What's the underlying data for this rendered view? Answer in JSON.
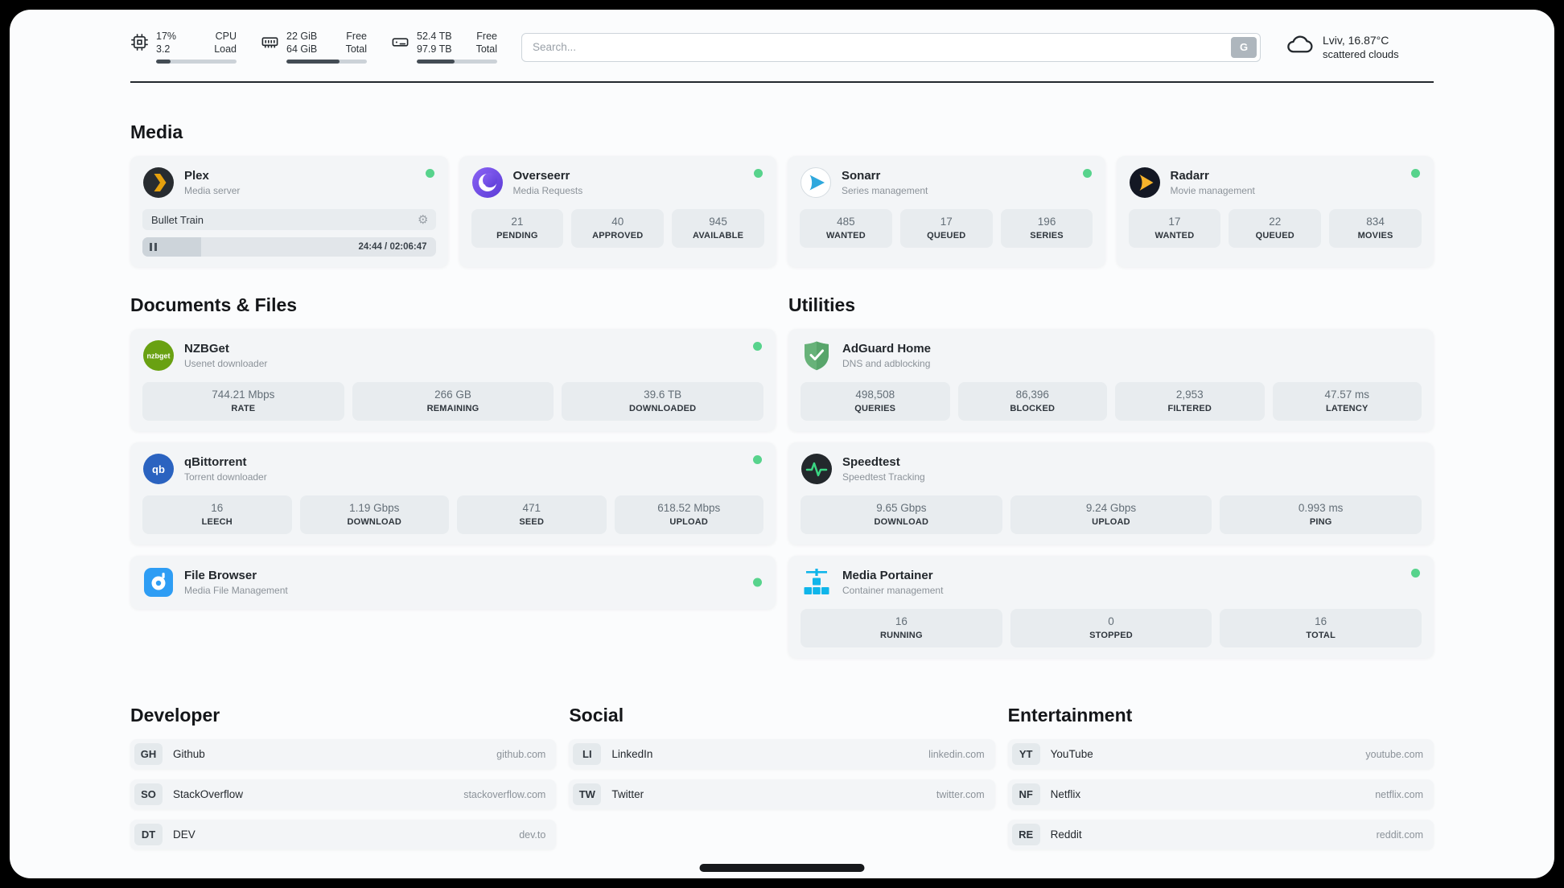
{
  "colors": {
    "status_online": "#57d38c"
  },
  "header": {
    "cpu": {
      "value_top": "17%",
      "label_top": "CPU",
      "value_bottom": "3.2",
      "label_bottom": "Load",
      "bar_percent": 18
    },
    "ram": {
      "value_top": "22 GiB",
      "label_top": "Free",
      "value_bottom": "64 GiB",
      "label_bottom": "Total",
      "bar_percent": 66
    },
    "disk": {
      "value_top": "52.4 TB",
      "label_top": "Free",
      "value_bottom": "97.9 TB",
      "label_bottom": "Total",
      "bar_percent": 47
    },
    "search": {
      "placeholder": "Search...",
      "engine_label": "G"
    },
    "weather": {
      "location": "Lviv, 16.87°C",
      "condition": "scattered clouds"
    }
  },
  "sections": {
    "media": {
      "title": "Media",
      "plex": {
        "name": "Plex",
        "subtitle": "Media server",
        "now_playing": "Bullet Train",
        "time": "24:44 / 02:06:47",
        "progress_percent": 20
      },
      "overseerr": {
        "name": "Overseerr",
        "subtitle": "Media Requests",
        "stats": [
          {
            "value": "21",
            "label": "PENDING"
          },
          {
            "value": "40",
            "label": "APPROVED"
          },
          {
            "value": "945",
            "label": "AVAILABLE"
          }
        ]
      },
      "sonarr": {
        "name": "Sonarr",
        "subtitle": "Series management",
        "stats": [
          {
            "value": "485",
            "label": "WANTED"
          },
          {
            "value": "17",
            "label": "QUEUED"
          },
          {
            "value": "196",
            "label": "SERIES"
          }
        ]
      },
      "radarr": {
        "name": "Radarr",
        "subtitle": "Movie management",
        "stats": [
          {
            "value": "17",
            "label": "WANTED"
          },
          {
            "value": "22",
            "label": "QUEUED"
          },
          {
            "value": "834",
            "label": "MOVIES"
          }
        ]
      }
    },
    "documents": {
      "title": "Documents & Files",
      "nzbget": {
        "name": "NZBGet",
        "subtitle": "Usenet downloader",
        "stats": [
          {
            "value": "744.21 Mbps",
            "label": "RATE"
          },
          {
            "value": "266 GB",
            "label": "REMAINING"
          },
          {
            "value": "39.6 TB",
            "label": "DOWNLOADED"
          }
        ]
      },
      "qbittorrent": {
        "name": "qBittorrent",
        "subtitle": "Torrent downloader",
        "stats": [
          {
            "value": "16",
            "label": "LEECH"
          },
          {
            "value": "1.19 Gbps",
            "label": "DOWNLOAD"
          },
          {
            "value": "471",
            "label": "SEED"
          },
          {
            "value": "618.52 Mbps",
            "label": "UPLOAD"
          }
        ]
      },
      "filebrowser": {
        "name": "File Browser",
        "subtitle": "Media File Management"
      }
    },
    "utilities": {
      "title": "Utilities",
      "adguard": {
        "name": "AdGuard Home",
        "subtitle": "DNS and adblocking",
        "stats": [
          {
            "value": "498,508",
            "label": "QUERIES"
          },
          {
            "value": "86,396",
            "label": "BLOCKED"
          },
          {
            "value": "2,953",
            "label": "FILTERED"
          },
          {
            "value": "47.57 ms",
            "label": "LATENCY"
          }
        ]
      },
      "speedtest": {
        "name": "Speedtest",
        "subtitle": "Speedtest Tracking",
        "stats": [
          {
            "value": "9.65 Gbps",
            "label": "DOWNLOAD"
          },
          {
            "value": "9.24 Gbps",
            "label": "UPLOAD"
          },
          {
            "value": "0.993 ms",
            "label": "PING"
          }
        ]
      },
      "portainer": {
        "name": "Media Portainer",
        "subtitle": "Container management",
        "stats": [
          {
            "value": "16",
            "label": "RUNNING"
          },
          {
            "value": "0",
            "label": "STOPPED"
          },
          {
            "value": "16",
            "label": "TOTAL"
          }
        ]
      }
    }
  },
  "bookmarks": [
    {
      "title": "Developer",
      "items": [
        {
          "abbr": "GH",
          "label": "Github",
          "url": "github.com"
        },
        {
          "abbr": "SO",
          "label": "StackOverflow",
          "url": "stackoverflow.com"
        },
        {
          "abbr": "DT",
          "label": "DEV",
          "url": "dev.to"
        }
      ]
    },
    {
      "title": "Social",
      "items": [
        {
          "abbr": "LI",
          "label": "LinkedIn",
          "url": "linkedin.com"
        },
        {
          "abbr": "TW",
          "label": "Twitter",
          "url": "twitter.com"
        }
      ]
    },
    {
      "title": "Entertainment",
      "items": [
        {
          "abbr": "YT",
          "label": "YouTube",
          "url": "youtube.com"
        },
        {
          "abbr": "NF",
          "label": "Netflix",
          "url": "netflix.com"
        },
        {
          "abbr": "RE",
          "label": "Reddit",
          "url": "reddit.com"
        }
      ]
    }
  ]
}
